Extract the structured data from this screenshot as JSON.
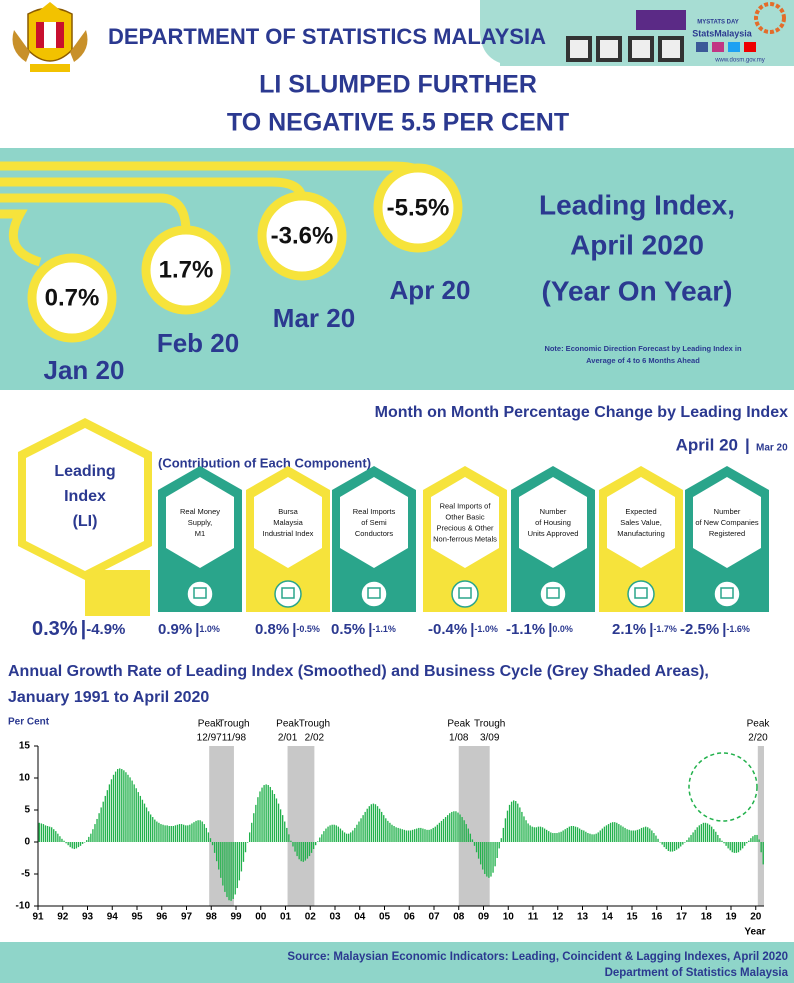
{
  "header": {
    "agency": "DEPARTMENT OF STATISTICS MALAYSIA",
    "headline": [
      "LI SLUMPED FURTHER",
      "TO NEGATIVE 5.5 PER CENT"
    ],
    "badges": [
      "MYSTATS DAY",
      "StatsMalaysia",
      "www.dosm.gov.my"
    ]
  },
  "yoy": {
    "months": [
      {
        "label": "Jan 20",
        "value": "0.7%"
      },
      {
        "label": "Feb 20",
        "value": "1.7%"
      },
      {
        "label": "Mar 20",
        "value": "-3.6%"
      },
      {
        "label": "Apr 20",
        "value": "-5.5%"
      }
    ],
    "title": [
      "Leading Index,",
      "April 2020",
      "(Year On Year)"
    ],
    "note": [
      "Note: Economic Direction Forecast by Leading Index in",
      "Average of 4 to 6 Months Ahead"
    ]
  },
  "mom": {
    "title": "Month on Month Percentage Change by Leading Index",
    "period": "April 20",
    "prev_period": "Mar 20",
    "subtitle": "(Contribution of Each Component)",
    "index": {
      "label": [
        "Leading",
        "Index",
        "(LI)"
      ],
      "value": "0.3%",
      "prev": "-4.9%"
    },
    "components": [
      {
        "label": [
          "Real Money",
          "Supply,",
          "M1"
        ],
        "value": "0.9%",
        "prev": "1.0%"
      },
      {
        "label": [
          "Bursa",
          "Malaysia",
          "Industrial Index"
        ],
        "value": "0.8%",
        "prev": "-0.5%"
      },
      {
        "label": [
          "Real Imports",
          "of Semi",
          "Conductors"
        ],
        "value": "0.5%",
        "prev": "-1.1%"
      },
      {
        "label": [
          "Real Imports of",
          "Other Basic",
          "Precious & Other",
          "Non-ferrous Metals"
        ],
        "value": "-0.4%",
        "prev": "-1.0%"
      },
      {
        "label": [
          "Number",
          "of Housing",
          "Units Approved"
        ],
        "value": "-1.1%",
        "prev": "0.0%"
      },
      {
        "label": [
          "Expected",
          "Sales Value,",
          "Manufacturing"
        ],
        "value": "2.1%",
        "prev": "-1.7%"
      },
      {
        "label": [
          "Number",
          "of New Companies",
          "Registered"
        ],
        "value": "-2.5%",
        "prev": "-1.6%"
      }
    ]
  },
  "chart_data": {
    "type": "bar",
    "title": [
      "Annual Growth Rate of Leading Index (Smoothed) and Business Cycle (Grey Shaded Areas),",
      "January 1991 to April 2020"
    ],
    "y_label": "Per Cent",
    "x_label": "Year",
    "color": "#22b14c",
    "ylim": [
      -10,
      15
    ],
    "yticks": [
      15,
      10,
      5,
      0,
      -5,
      -10
    ],
    "xticks": [
      {
        "value": 0,
        "label": "91"
      },
      {
        "value": 12,
        "label": "92"
      },
      {
        "value": 24,
        "label": "93"
      },
      {
        "value": 36,
        "label": "94"
      },
      {
        "value": 48,
        "label": "95"
      },
      {
        "value": 60,
        "label": "96"
      },
      {
        "value": 72,
        "label": "97"
      },
      {
        "value": 84,
        "label": "98"
      },
      {
        "value": 96,
        "label": "99"
      },
      {
        "value": 108,
        "label": "00"
      },
      {
        "value": 120,
        "label": "01"
      },
      {
        "value": 132,
        "label": "02"
      },
      {
        "value": 144,
        "label": "03"
      },
      {
        "value": 156,
        "label": "04"
      },
      {
        "value": 168,
        "label": "05"
      },
      {
        "value": 180,
        "label": "06"
      },
      {
        "value": 192,
        "label": "07"
      },
      {
        "value": 204,
        "label": "08"
      },
      {
        "value": 216,
        "label": "09"
      },
      {
        "value": 228,
        "label": "10"
      },
      {
        "value": 240,
        "label": "11"
      },
      {
        "value": 252,
        "label": "12"
      },
      {
        "value": 264,
        "label": "13"
      },
      {
        "value": 276,
        "label": "14"
      },
      {
        "value": 288,
        "label": "15"
      },
      {
        "value": 300,
        "label": "16"
      },
      {
        "value": 312,
        "label": "17"
      },
      {
        "value": 324,
        "label": "18"
      },
      {
        "value": 336,
        "label": "19"
      },
      {
        "value": 348,
        "label": "20"
      }
    ],
    "peak_word": "Peak",
    "trough_word": "Trough",
    "cycles": [
      {
        "peak": "12/97",
        "trough": "11/98"
      },
      {
        "peak": "2/01",
        "trough": "2/02"
      },
      {
        "peak": "1/08",
        "trough": "3/09"
      },
      {
        "peak": "2/20"
      }
    ],
    "values": [
      3.0,
      2.9,
      2.8,
      2.6,
      2.5,
      2.4,
      2.3,
      2.0,
      1.7,
      1.3,
      0.9,
      0.5,
      0.2,
      -0.2,
      -0.5,
      -0.8,
      -1.0,
      -1.1,
      -1.0,
      -0.8,
      -0.6,
      -0.3,
      0.0,
      0.3,
      0.8,
      1.3,
      2.0,
      2.8,
      3.6,
      4.5,
      5.4,
      6.3,
      7.2,
      8.1,
      9.0,
      9.8,
      10.5,
      11.0,
      11.4,
      11.5,
      11.4,
      11.2,
      10.9,
      10.5,
      10.1,
      9.6,
      9.0,
      8.4,
      7.8,
      7.2,
      6.6,
      6.0,
      5.4,
      4.8,
      4.3,
      3.9,
      3.5,
      3.2,
      3.0,
      2.8,
      2.7,
      2.6,
      2.6,
      2.5,
      2.5,
      2.5,
      2.6,
      2.7,
      2.8,
      2.8,
      2.7,
      2.6,
      2.6,
      2.7,
      2.9,
      3.1,
      3.3,
      3.4,
      3.4,
      3.2,
      2.8,
      2.2,
      1.5,
      0.6,
      -0.5,
      -1.7,
      -3.0,
      -4.3,
      -5.6,
      -6.8,
      -7.8,
      -8.6,
      -9.1,
      -9.2,
      -8.9,
      -8.2,
      -7.2,
      -6.0,
      -4.6,
      -3.1,
      -1.6,
      -0.1,
      1.5,
      3.0,
      4.5,
      5.8,
      7.0,
      7.9,
      8.5,
      8.9,
      9.0,
      8.9,
      8.6,
      8.1,
      7.5,
      6.8,
      6.0,
      5.1,
      4.2,
      3.2,
      2.2,
      1.2,
      0.2,
      -0.7,
      -1.5,
      -2.2,
      -2.7,
      -3.0,
      -3.1,
      -2.9,
      -2.6,
      -2.2,
      -1.7,
      -1.1,
      -0.5,
      0.1,
      0.7,
      1.2,
      1.7,
      2.1,
      2.4,
      2.6,
      2.7,
      2.7,
      2.6,
      2.4,
      2.1,
      1.8,
      1.5,
      1.3,
      1.3,
      1.5,
      1.8,
      2.2,
      2.7,
      3.2,
      3.7,
      4.2,
      4.7,
      5.2,
      5.6,
      5.9,
      6.0,
      5.9,
      5.6,
      5.2,
      4.7,
      4.2,
      3.7,
      3.3,
      3.0,
      2.7,
      2.5,
      2.3,
      2.2,
      2.1,
      2.0,
      1.9,
      1.8,
      1.8,
      1.8,
      1.9,
      2.0,
      2.1,
      2.2,
      2.2,
      2.1,
      2.0,
      1.9,
      1.9,
      2.0,
      2.2,
      2.4,
      2.7,
      3.0,
      3.3,
      3.6,
      3.9,
      4.2,
      4.5,
      4.7,
      4.8,
      4.8,
      4.6,
      4.3,
      3.9,
      3.4,
      2.8,
      2.1,
      1.3,
      0.4,
      -0.6,
      -1.6,
      -2.6,
      -3.5,
      -4.3,
      -5.0,
      -5.4,
      -5.6,
      -5.4,
      -4.8,
      -3.8,
      -2.5,
      -1.0,
      0.6,
      2.2,
      3.7,
      4.9,
      5.8,
      6.3,
      6.5,
      6.4,
      6.0,
      5.4,
      4.7,
      4.0,
      3.4,
      2.9,
      2.6,
      2.4,
      2.3,
      2.3,
      2.4,
      2.4,
      2.3,
      2.1,
      1.9,
      1.7,
      1.5,
      1.4,
      1.4,
      1.4,
      1.5,
      1.6,
      1.8,
      2.0,
      2.2,
      2.4,
      2.5,
      2.5,
      2.4,
      2.3,
      2.1,
      1.9,
      1.8,
      1.6,
      1.4,
      1.3,
      1.2,
      1.2,
      1.3,
      1.5,
      1.8,
      2.1,
      2.4,
      2.6,
      2.8,
      3.0,
      3.1,
      3.1,
      3.0,
      2.8,
      2.6,
      2.4,
      2.2,
      2.0,
      1.9,
      1.8,
      1.8,
      1.8,
      1.9,
      2.0,
      2.2,
      2.3,
      2.4,
      2.3,
      2.1,
      1.8,
      1.4,
      1.0,
      0.5,
      0.0,
      -0.4,
      -0.8,
      -1.1,
      -1.4,
      -1.5,
      -1.5,
      -1.4,
      -1.2,
      -1.0,
      -0.7,
      -0.4,
      -0.1,
      0.3,
      0.7,
      1.1,
      1.5,
      1.9,
      2.3,
      2.6,
      2.8,
      3.0,
      3.0,
      2.9,
      2.7,
      2.4,
      2.0,
      1.6,
      1.1,
      0.6,
      0.2,
      -0.2,
      -0.6,
      -1.0,
      -1.3,
      -1.6,
      -1.7,
      -1.7,
      -1.6,
      -1.3,
      -1.0,
      -0.6,
      -0.2,
      0.2,
      0.6,
      0.9,
      1.1,
      1.1,
      0.4,
      -1.6,
      -3.5
    ]
  },
  "footer": {
    "source": "Source:  Malaysian Economic Indicators: Leading, Coincident & Lagging Indexes, April 2020",
    "publisher": "Department of Statistics Malaysia"
  }
}
